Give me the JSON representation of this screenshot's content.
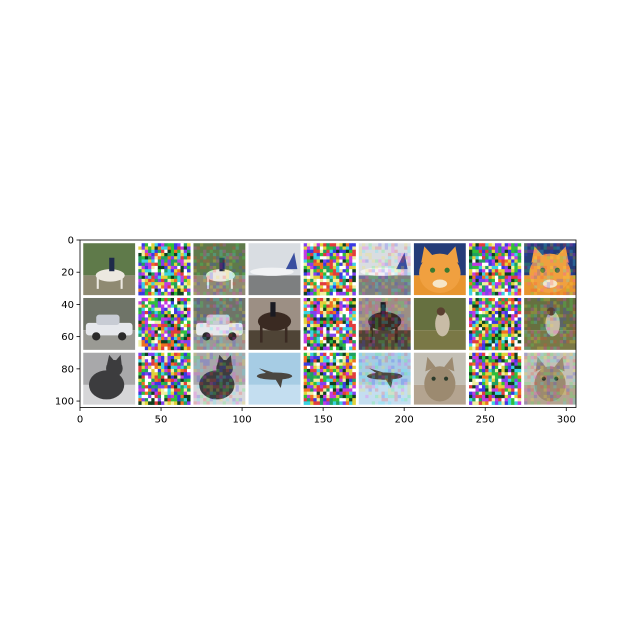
{
  "chart_data": {
    "type": "image-grid",
    "title": "",
    "xlabel": "",
    "ylabel": "",
    "xlim": [
      0,
      306
    ],
    "ylim": [
      104,
      0
    ],
    "x_ticks": [
      0,
      50,
      100,
      150,
      200,
      250,
      300
    ],
    "y_ticks": [
      0,
      20,
      40,
      60,
      80,
      100
    ],
    "grid": false,
    "tile_size": 32,
    "padding": 2,
    "rows": 3,
    "cols": 9,
    "background": "#ffffff",
    "column_roles": [
      "original",
      "perturbation",
      "adversarial",
      "original",
      "perturbation",
      "adversarial",
      "original",
      "perturbation",
      "adversarial"
    ],
    "tiles": [
      {
        "row": 0,
        "col": 0,
        "subject": "horse-with-rider",
        "sky": "#5f7a4a",
        "ground": "#8f8a72",
        "body": "#ece8e0"
      },
      {
        "row": 0,
        "col": 1,
        "subject": "noise"
      },
      {
        "row": 0,
        "col": 2,
        "subject": "horse-with-rider",
        "sky": "#5f7a4a",
        "ground": "#8f8a72",
        "body": "#ece8e0"
      },
      {
        "row": 0,
        "col": 3,
        "subject": "airplane",
        "sky": "#d9dde2",
        "ground": "#7d7f80",
        "body": "#f1f2f4"
      },
      {
        "row": 0,
        "col": 4,
        "subject": "noise"
      },
      {
        "row": 0,
        "col": 5,
        "subject": "airplane",
        "sky": "#d9dde2",
        "ground": "#7d7f80",
        "body": "#f1f2f4"
      },
      {
        "row": 0,
        "col": 6,
        "subject": "cat-face",
        "sky": "#243c78",
        "ground": "#e89530",
        "body": "#f0a040"
      },
      {
        "row": 0,
        "col": 7,
        "subject": "noise"
      },
      {
        "row": 0,
        "col": 8,
        "subject": "cat-face",
        "sky": "#243c78",
        "ground": "#e89530",
        "body": "#f0a040"
      },
      {
        "row": 1,
        "col": 0,
        "subject": "car",
        "sky": "#6f7468",
        "ground": "#9a9a94",
        "body": "#e6e8ec"
      },
      {
        "row": 1,
        "col": 1,
        "subject": "noise"
      },
      {
        "row": 1,
        "col": 2,
        "subject": "car",
        "sky": "#6f7468",
        "ground": "#9a9a94",
        "body": "#e6e8ec"
      },
      {
        "row": 1,
        "col": 3,
        "subject": "horse-dark",
        "sky": "#9c8f84",
        "ground": "#4f4436",
        "body": "#3a2a22"
      },
      {
        "row": 1,
        "col": 4,
        "subject": "noise"
      },
      {
        "row": 1,
        "col": 5,
        "subject": "horse-dark",
        "sky": "#9c8f84",
        "ground": "#4f4436",
        "body": "#3a2a22"
      },
      {
        "row": 1,
        "col": 6,
        "subject": "animal-grass",
        "sky": "#667040",
        "ground": "#7a7846",
        "body": "#c8bca6"
      },
      {
        "row": 1,
        "col": 7,
        "subject": "noise"
      },
      {
        "row": 1,
        "col": 8,
        "subject": "animal-grass",
        "sky": "#667040",
        "ground": "#7a7846",
        "body": "#c8bca6"
      },
      {
        "row": 2,
        "col": 0,
        "subject": "cat-dark",
        "sky": "#a8a8aa",
        "ground": "#d6d6d8",
        "body": "#3c3c3e"
      },
      {
        "row": 2,
        "col": 1,
        "subject": "noise"
      },
      {
        "row": 2,
        "col": 2,
        "subject": "cat-dark",
        "sky": "#a8a8aa",
        "ground": "#d6d6d8",
        "body": "#3c3c3e"
      },
      {
        "row": 2,
        "col": 3,
        "subject": "airplane-sky",
        "sky": "#a6cce4",
        "ground": "#c4def0",
        "body": "#4a4640"
      },
      {
        "row": 2,
        "col": 4,
        "subject": "noise"
      },
      {
        "row": 2,
        "col": 5,
        "subject": "airplane-sky",
        "sky": "#a6cce4",
        "ground": "#c4def0",
        "body": "#4a4640"
      },
      {
        "row": 2,
        "col": 6,
        "subject": "cat-tabby",
        "sky": "#c4c0b6",
        "ground": "#b4a490",
        "body": "#9c8a70"
      },
      {
        "row": 2,
        "col": 7,
        "subject": "noise"
      },
      {
        "row": 2,
        "col": 8,
        "subject": "cat-tabby",
        "sky": "#c4c0b6",
        "ground": "#b4a490",
        "body": "#9c8a70"
      }
    ]
  }
}
